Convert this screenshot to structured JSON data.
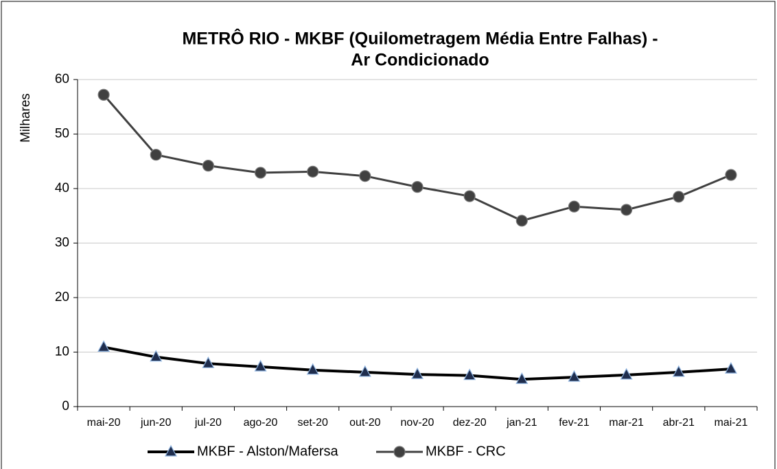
{
  "chart_data": {
    "type": "line",
    "title": [
      "METRÔ RIO - MKBF (Quilometragem Média Entre Falhas) -",
      "Ar Condicionado"
    ],
    "y_label": "Milhares",
    "categories": [
      "mai-20",
      "jun-20",
      "jul-20",
      "ago-20",
      "set-20",
      "out-20",
      "nov-20",
      "dez-20",
      "jan-21",
      "fev-21",
      "mar-21",
      "abr-21",
      "mai-21"
    ],
    "series": [
      {
        "name": "MKBF - Alston/Mafersa",
        "color": "#000000",
        "marker": "triangle",
        "marker_color": "#1f2d4d",
        "values": [
          10.9,
          9.1,
          7.9,
          7.3,
          6.7,
          6.3,
          5.9,
          5.7,
          5.0,
          5.4,
          5.8,
          6.3,
          6.9
        ]
      },
      {
        "name": "MKBF - CRC",
        "color": "#404040",
        "marker": "circle",
        "marker_color": "#404040",
        "values": [
          57.2,
          46.2,
          44.2,
          42.9,
          43.1,
          42.3,
          40.3,
          38.6,
          34.1,
          36.7,
          36.1,
          38.5,
          42.5
        ]
      }
    ],
    "ylim": [
      0,
      60
    ],
    "yticks": [
      0,
      10,
      20,
      30,
      40,
      50,
      60
    ],
    "grid": true
  }
}
